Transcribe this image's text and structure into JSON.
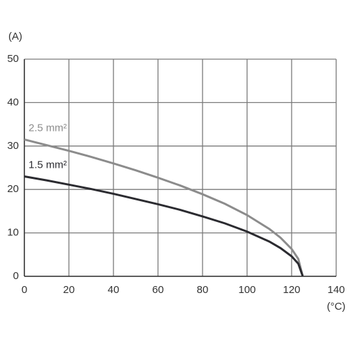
{
  "chart_data": {
    "type": "line",
    "y_label": "(A)",
    "x_label": "(°C)",
    "x": [
      0,
      10,
      20,
      30,
      40,
      50,
      60,
      70,
      80,
      90,
      100,
      110,
      115,
      120,
      123,
      125
    ],
    "series": [
      {
        "name": "2.5 mm²",
        "color": "#8c8c8c",
        "values": [
          31.5,
          30.2,
          28.9,
          27.5,
          26.0,
          24.4,
          22.7,
          20.9,
          18.9,
          16.7,
          14.1,
          10.9,
          8.9,
          6.3,
          4.0,
          0
        ]
      },
      {
        "name": "1.5 mm²",
        "color": "#2b2b30",
        "values": [
          23,
          22.1,
          21.1,
          20.1,
          19.0,
          17.8,
          16.6,
          15.3,
          13.8,
          12.2,
          10.3,
          8.0,
          6.5,
          4.6,
          2.9,
          0
        ]
      }
    ],
    "xlim": [
      0,
      140
    ],
    "xticks": [
      0,
      20,
      40,
      60,
      80,
      100,
      120,
      140
    ],
    "ylim": [
      0,
      50
    ],
    "yticks": [
      0,
      10,
      20,
      30,
      40,
      50
    ],
    "grid": true
  }
}
